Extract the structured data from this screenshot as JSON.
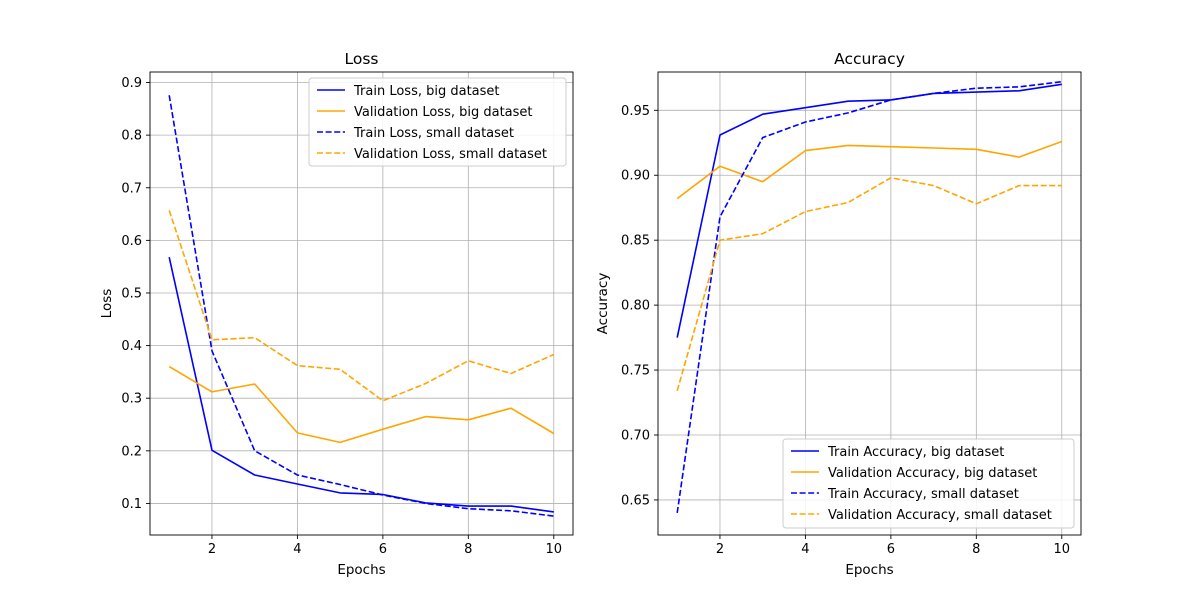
{
  "chart_data": [
    {
      "type": "line",
      "title": "Loss",
      "xlabel": "Epochs",
      "ylabel": "Loss",
      "xlim": [
        0.55,
        10.45
      ],
      "ylim": [
        0.04,
        0.92
      ],
      "xticks": [
        2,
        4,
        6,
        8,
        10
      ],
      "yticks": [
        0.1,
        0.2,
        0.3,
        0.4,
        0.5,
        0.6,
        0.7,
        0.8,
        0.9
      ],
      "ytick_labels": [
        "0.1",
        "0.2",
        "0.3",
        "0.4",
        "0.5",
        "0.6",
        "0.7",
        "0.8",
        "0.9"
      ],
      "grid": true,
      "legend_position": "top-right",
      "x": [
        1,
        2,
        3,
        4,
        5,
        6,
        7,
        8,
        9,
        10
      ],
      "series": [
        {
          "name": "Train Loss, big dataset",
          "color": "#0000ff",
          "dashed": false,
          "values": [
            0.568,
            0.201,
            0.154,
            0.137,
            0.12,
            0.117,
            0.101,
            0.095,
            0.095,
            0.084
          ]
        },
        {
          "name": "Validation Loss, big dataset",
          "color": "#ffa500",
          "dashed": false,
          "values": [
            0.36,
            0.312,
            0.327,
            0.234,
            0.216,
            0.241,
            0.265,
            0.259,
            0.281,
            0.233
          ]
        },
        {
          "name": "Train Loss, small dataset",
          "color": "#0000ff",
          "dashed": true,
          "values": [
            0.876,
            0.39,
            0.2,
            0.154,
            0.136,
            0.116,
            0.1,
            0.09,
            0.086,
            0.076
          ]
        },
        {
          "name": "Validation Loss, small dataset",
          "color": "#ffa500",
          "dashed": true,
          "values": [
            0.657,
            0.411,
            0.415,
            0.362,
            0.355,
            0.295,
            0.328,
            0.371,
            0.347,
            0.383
          ]
        }
      ]
    },
    {
      "type": "line",
      "title": "Accuracy",
      "xlabel": "Epochs",
      "ylabel": "Accuracy",
      "xlim": [
        0.55,
        10.45
      ],
      "ylim": [
        0.623,
        0.9795
      ],
      "xticks": [
        2,
        4,
        6,
        8,
        10
      ],
      "yticks": [
        0.65,
        0.7,
        0.75,
        0.8,
        0.85,
        0.9,
        0.95
      ],
      "ytick_labels": [
        "0.65",
        "0.70",
        "0.75",
        "0.80",
        "0.85",
        "0.90",
        "0.95"
      ],
      "grid": true,
      "legend_position": "bottom-right",
      "x": [
        1,
        2,
        3,
        4,
        5,
        6,
        7,
        8,
        9,
        10
      ],
      "series": [
        {
          "name": "Train Accuracy, big dataset",
          "color": "#0000ff",
          "dashed": false,
          "values": [
            0.775,
            0.931,
            0.947,
            0.952,
            0.957,
            0.958,
            0.963,
            0.964,
            0.965,
            0.97
          ]
        },
        {
          "name": "Validation Accuracy, big dataset",
          "color": "#ffa500",
          "dashed": false,
          "values": [
            0.882,
            0.907,
            0.895,
            0.919,
            0.923,
            0.922,
            0.921,
            0.92,
            0.914,
            0.926
          ]
        },
        {
          "name": "Train Accuracy, small dataset",
          "color": "#0000ff",
          "dashed": true,
          "values": [
            0.64,
            0.868,
            0.929,
            0.941,
            0.948,
            0.958,
            0.963,
            0.967,
            0.968,
            0.972
          ]
        },
        {
          "name": "Validation Accuracy, small dataset",
          "color": "#ffa500",
          "dashed": true,
          "values": [
            0.734,
            0.85,
            0.855,
            0.872,
            0.879,
            0.898,
            0.892,
            0.878,
            0.892,
            0.892
          ]
        }
      ]
    }
  ]
}
